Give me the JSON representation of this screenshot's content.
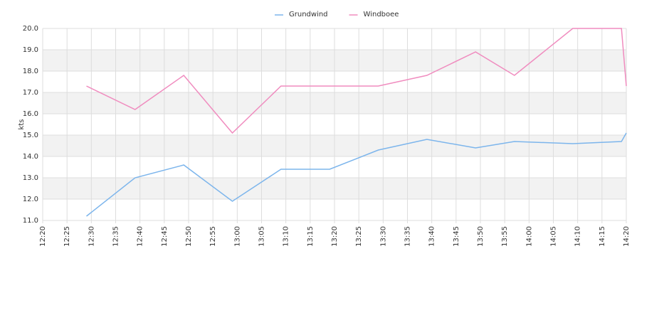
{
  "chart_data": {
    "type": "line",
    "y_label": "kts",
    "x": [
      "12:29",
      "12:39",
      "12:49",
      "12:59",
      "13:09",
      "13:19",
      "13:29",
      "13:39",
      "13:49",
      "13:57",
      "14:09",
      "14:19",
      "14:20"
    ],
    "series": [
      {
        "name": "Grundwind",
        "color": "#7cb5ec",
        "values": [
          11.2,
          13.0,
          13.6,
          11.9,
          13.4,
          13.4,
          14.3,
          14.8,
          14.4,
          14.7,
          14.6,
          14.7,
          15.1
        ]
      },
      {
        "name": "Windboee",
        "color": "#f08cbf",
        "values": [
          17.3,
          16.2,
          17.8,
          15.1,
          17.3,
          17.3,
          17.3,
          17.8,
          18.9,
          17.8,
          20.0,
          20.0,
          17.3
        ]
      }
    ],
    "xlim": [
      "12:20",
      "14:20"
    ],
    "xticks": [
      "12:20",
      "12:25",
      "12:30",
      "12:35",
      "12:40",
      "12:45",
      "12:50",
      "12:55",
      "13:00",
      "13:05",
      "13:10",
      "13:15",
      "13:20",
      "13:25",
      "13:30",
      "13:35",
      "13:40",
      "13:45",
      "13:50",
      "13:55",
      "14:00",
      "14:05",
      "14:10",
      "14:15",
      "14:20"
    ],
    "ylim": [
      11,
      20
    ],
    "yticks": [
      {
        "value": 11,
        "label": "11.0"
      },
      {
        "value": 12,
        "label": "12.0"
      },
      {
        "value": 13,
        "label": "13.0"
      },
      {
        "value": 14,
        "label": "14.0"
      },
      {
        "value": 15,
        "label": "15.0"
      },
      {
        "value": 16,
        "label": "16.0"
      },
      {
        "value": 17,
        "label": "17.0"
      },
      {
        "value": 18,
        "label": "18.0"
      },
      {
        "value": 19,
        "label": "19.0"
      },
      {
        "value": 20,
        "label": "20.0"
      }
    ],
    "grid": true,
    "legend": "top"
  }
}
